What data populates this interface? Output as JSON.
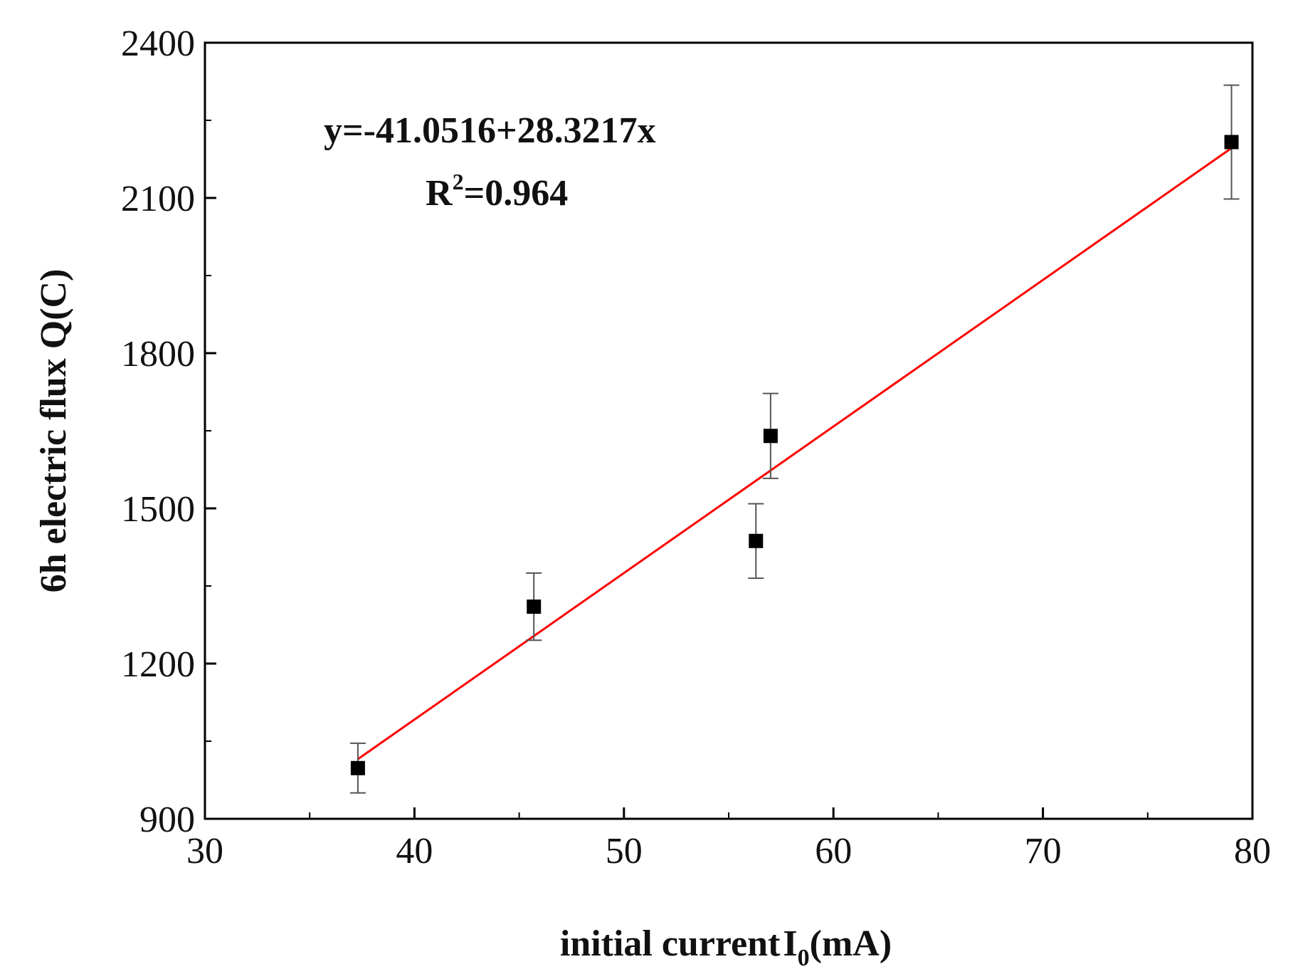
{
  "chart_data": {
    "type": "scatter",
    "xlabel": "initial current",
    "xlabel_symbol": "I",
    "xlabel_subscript": "0",
    "xlabel_unit": "(mA)",
    "ylabel": "6h electric flux Q(C)",
    "xlim": [
      30,
      80
    ],
    "ylim": [
      900,
      2400
    ],
    "x_ticks": [
      30,
      40,
      50,
      60,
      70,
      80
    ],
    "y_ticks": [
      900,
      1200,
      1500,
      1800,
      2100,
      2400
    ],
    "x_minor_step": 5,
    "y_minor_step": 150,
    "grid": false,
    "points": [
      {
        "x": 37.3,
        "y": 998,
        "err": 48
      },
      {
        "x": 45.7,
        "y": 1310,
        "err": 65
      },
      {
        "x": 56.3,
        "y": 1437,
        "err": 72
      },
      {
        "x": 57.0,
        "y": 1640,
        "err": 82
      },
      {
        "x": 79.0,
        "y": 2208,
        "err": 110
      }
    ],
    "fit": {
      "intercept": -41.0516,
      "slope": 28.3217,
      "x_range": [
        37.3,
        79.0
      ],
      "equation_text": "y=-41.0516+28.3217x",
      "r2_prefix": "R",
      "r2_superscript": "2",
      "r2_suffix": "=0.964"
    },
    "colors": {
      "fit_line": "#ff0000",
      "marker": "#000000",
      "error_bar": "#555555",
      "axis": "#000000"
    }
  }
}
